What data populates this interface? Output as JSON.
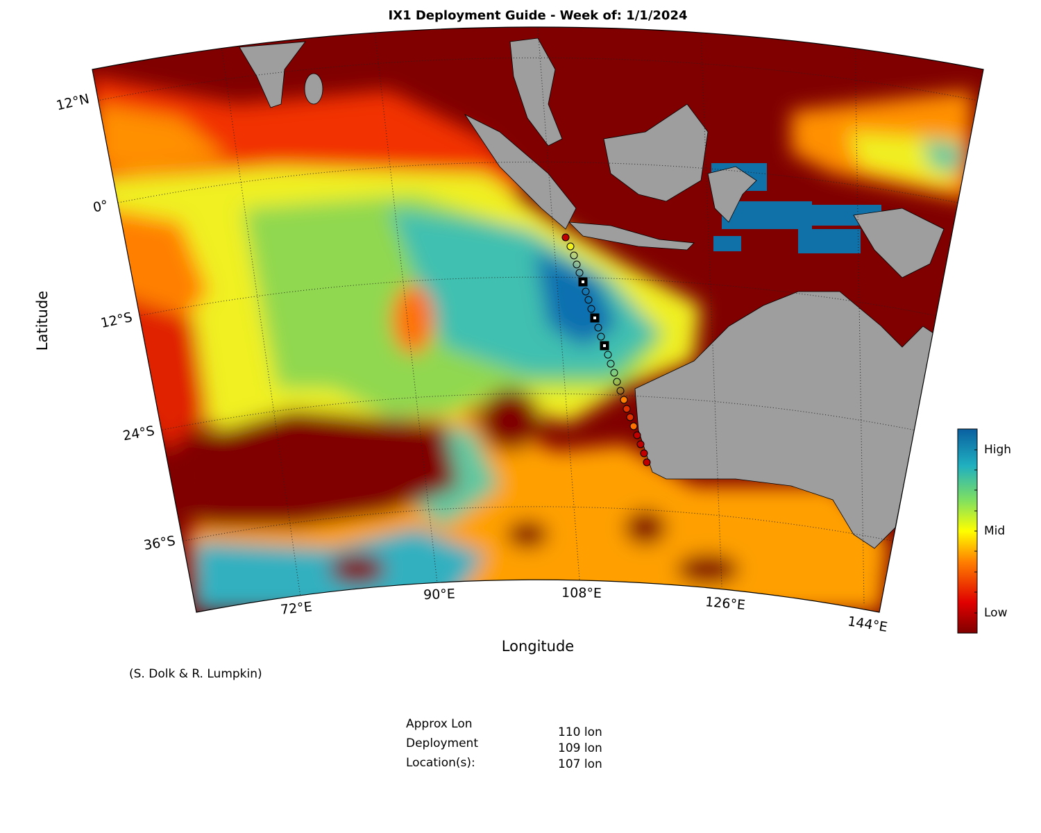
{
  "title": "IX1 Deployment Guide - Week of: 1/1/2024",
  "x_label": "Longitude",
  "y_label": "Latitude",
  "lat_labels": [
    "12°N",
    "0°",
    "12°S",
    "24°S",
    "36°S"
  ],
  "lon_labels": [
    "72°E",
    "90°E",
    "108°E",
    "126°E",
    "144°E"
  ],
  "colorbar_labels": [
    "High",
    "Mid",
    "Low"
  ],
  "credit": "(S. Dolk & R. Lumpkin)",
  "deployment": {
    "labels": [
      "Approx Lon",
      "Deployment",
      "Location(s):"
    ],
    "values": [
      "110 lon",
      "109 lon",
      "107 lon"
    ]
  }
}
